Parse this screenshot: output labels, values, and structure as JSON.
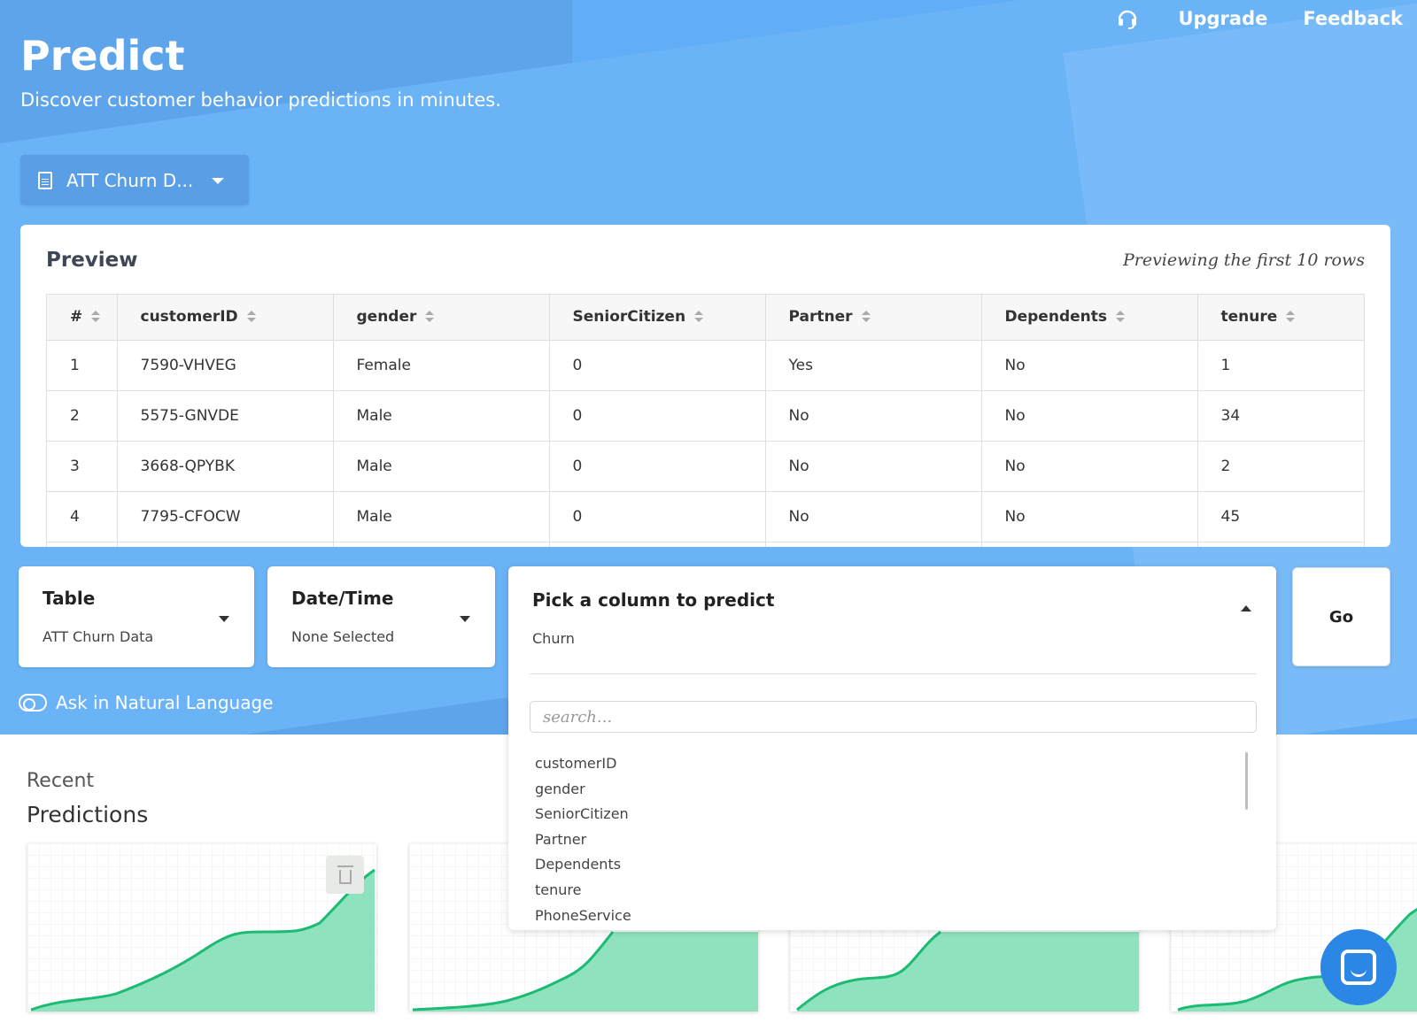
{
  "topnav": {
    "support_icon": "headset-icon",
    "upgrade": "Upgrade",
    "feedback": "Feedback"
  },
  "header": {
    "title": "Predict",
    "subtitle": "Discover customer behavior predictions in minutes."
  },
  "dataset_selector": {
    "icon": "document-icon",
    "label": "ATT Churn D..."
  },
  "preview": {
    "title": "Preview",
    "note": "Previewing the first 10 rows",
    "columns": [
      "#",
      "customerID",
      "gender",
      "SeniorCitizen",
      "Partner",
      "Dependents",
      "tenure"
    ],
    "rows": [
      [
        "1",
        "7590-VHVEG",
        "Female",
        "0",
        "Yes",
        "No",
        "1"
      ],
      [
        "2",
        "5575-GNVDE",
        "Male",
        "0",
        "No",
        "No",
        "34"
      ],
      [
        "3",
        "3668-QPYBK",
        "Male",
        "0",
        "No",
        "No",
        "2"
      ],
      [
        "4",
        "7795-CFOCW",
        "Male",
        "0",
        "No",
        "No",
        "45"
      ],
      [
        "",
        "",
        "",
        "",
        "",
        "",
        ""
      ]
    ]
  },
  "table_selector": {
    "title": "Table",
    "value": "ATT Churn Data"
  },
  "datetime_selector": {
    "title": "Date/Time",
    "value": "None Selected"
  },
  "predict_column": {
    "title": "Pick a column to predict",
    "value": "Churn",
    "search_placeholder": "search...",
    "options": [
      "customerID",
      "gender",
      "SeniorCitizen",
      "Partner",
      "Dependents",
      "tenure",
      "PhoneService"
    ]
  },
  "go_button": "Go",
  "natural_language_toggle": {
    "label": "Ask in Natural Language",
    "enabled": false
  },
  "recent": {
    "label": "Recent",
    "title": "Predictions"
  },
  "colors": {
    "hero_blue": "#62aef6",
    "chart_line": "#1dba74",
    "chart_fill": "#8ee2bd",
    "chat_button": "#2b86e6"
  }
}
